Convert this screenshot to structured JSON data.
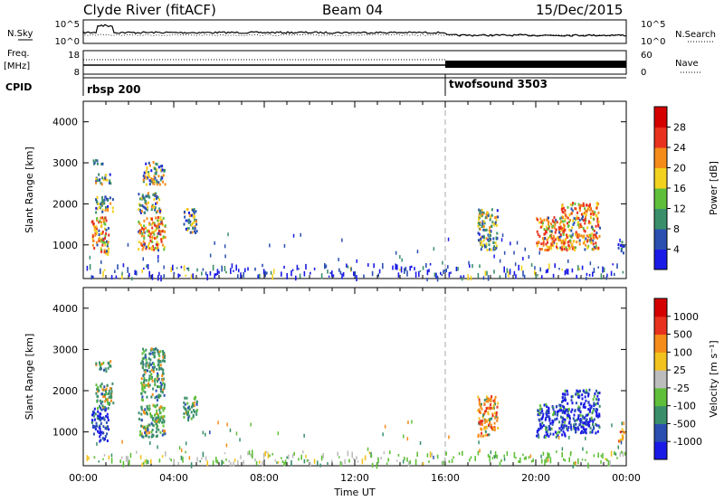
{
  "header": {
    "station": "Clyde River (fitACF)",
    "beam": "Beam 04",
    "date": "15/Dec/2015"
  },
  "nsky": {
    "label": "N.Sky",
    "right_label": "N.Search",
    "ticks_left": [
      "10^5",
      "10^0"
    ],
    "ticks_right": [
      "10^5",
      "10^0"
    ]
  },
  "freq": {
    "label": "Freq.",
    "unit": "[MHz]",
    "ticks_left": [
      "18",
      "8"
    ],
    "right_label": "Nave",
    "ticks_right": [
      "60",
      "0"
    ]
  },
  "cpid": {
    "label": "CPID",
    "modes": [
      "rbsp 200",
      "twofsound 3503"
    ]
  },
  "x_axis": {
    "label": "Time UT",
    "ticks": [
      "00:00",
      "04:00",
      "08:00",
      "12:00",
      "16:00",
      "20:00",
      "00:00"
    ]
  },
  "y_axis": {
    "label": "Slant Range [km]",
    "ticks": [
      "1000",
      "2000",
      "3000",
      "4000"
    ]
  },
  "power_scale": {
    "label": "Power [dB]",
    "ticks": [
      "4",
      "8",
      "12",
      "16",
      "20",
      "24",
      "28"
    ],
    "colors": [
      "#1a1ae6",
      "#2a4fb0",
      "#3a8f6a",
      "#5fbf3a",
      "#f2d21e",
      "#f58c1a",
      "#e8321e",
      "#d40000"
    ]
  },
  "velocity_scale": {
    "label": "Velocity [m s⁻¹]",
    "ticks": [
      "1000",
      "500",
      "100",
      "25",
      "-25",
      "-100",
      "-500",
      "-1000"
    ],
    "colors": [
      "#1a1ae6",
      "#2a4fb0",
      "#3a8f6a",
      "#5fbf3a",
      "#bdbdbd",
      "#f2c21e",
      "#f58c1a",
      "#e8321e",
      "#d40000"
    ]
  },
  "chart_data": {
    "type": "heatmap",
    "x_range_hours": [
      0,
      24
    ],
    "y_range_km": [
      180,
      4500
    ],
    "mode_change_hour": 16.0,
    "power_clusters": [
      {
        "t": [
          0.35,
          1.1
        ],
        "r": [
          800,
          1700
        ],
        "mix": "hot"
      },
      {
        "t": [
          0.5,
          1.3
        ],
        "r": [
          1800,
          2200
        ],
        "mix": "mid"
      },
      {
        "t": [
          0.5,
          1.2
        ],
        "r": [
          2500,
          2750
        ],
        "mix": "mid"
      },
      {
        "t": [
          0.4,
          0.9
        ],
        "r": [
          2950,
          3100
        ],
        "mix": "cool"
      },
      {
        "t": [
          2.4,
          3.6
        ],
        "r": [
          900,
          1700
        ],
        "mix": "hot"
      },
      {
        "t": [
          2.4,
          3.4
        ],
        "r": [
          1800,
          2300
        ],
        "mix": "mid"
      },
      {
        "t": [
          2.6,
          3.6
        ],
        "r": [
          2500,
          3050
        ],
        "mix": "mid"
      },
      {
        "t": [
          4.4,
          5.0
        ],
        "r": [
          1300,
          1900
        ],
        "mix": "mid"
      },
      {
        "t": [
          17.4,
          18.3
        ],
        "r": [
          900,
          1900
        ],
        "mix": "mid"
      },
      {
        "t": [
          20.0,
          21.2
        ],
        "r": [
          900,
          1700
        ],
        "mix": "hot"
      },
      {
        "t": [
          21.1,
          22.8
        ],
        "r": [
          900,
          2050
        ],
        "mix": "hot"
      },
      {
        "t": [
          23.6,
          23.9
        ],
        "r": [
          800,
          1100
        ],
        "mix": "cool"
      }
    ],
    "velocity_clusters": [
      {
        "t": [
          0.35,
          1.1
        ],
        "r": [
          800,
          1600
        ],
        "mix": "blue"
      },
      {
        "t": [
          0.5,
          1.3
        ],
        "r": [
          1600,
          2200
        ],
        "mix": "green"
      },
      {
        "t": [
          0.5,
          1.2
        ],
        "r": [
          2500,
          2750
        ],
        "mix": "green"
      },
      {
        "t": [
          2.4,
          3.6
        ],
        "r": [
          900,
          1700
        ],
        "mix": "green"
      },
      {
        "t": [
          2.5,
          3.6
        ],
        "r": [
          1800,
          3050
        ],
        "mix": "green"
      },
      {
        "t": [
          4.4,
          5.0
        ],
        "r": [
          1300,
          1900
        ],
        "mix": "green"
      },
      {
        "t": [
          17.4,
          18.3
        ],
        "r": [
          900,
          1900
        ],
        "mix": "orange"
      },
      {
        "t": [
          20.0,
          21.3
        ],
        "r": [
          900,
          1700
        ],
        "mix": "blue"
      },
      {
        "t": [
          21.1,
          22.8
        ],
        "r": [
          1000,
          2050
        ],
        "mix": "blue"
      },
      {
        "t": [
          23.6,
          23.9
        ],
        "r": [
          800,
          1100
        ],
        "mix": "orange"
      }
    ]
  }
}
